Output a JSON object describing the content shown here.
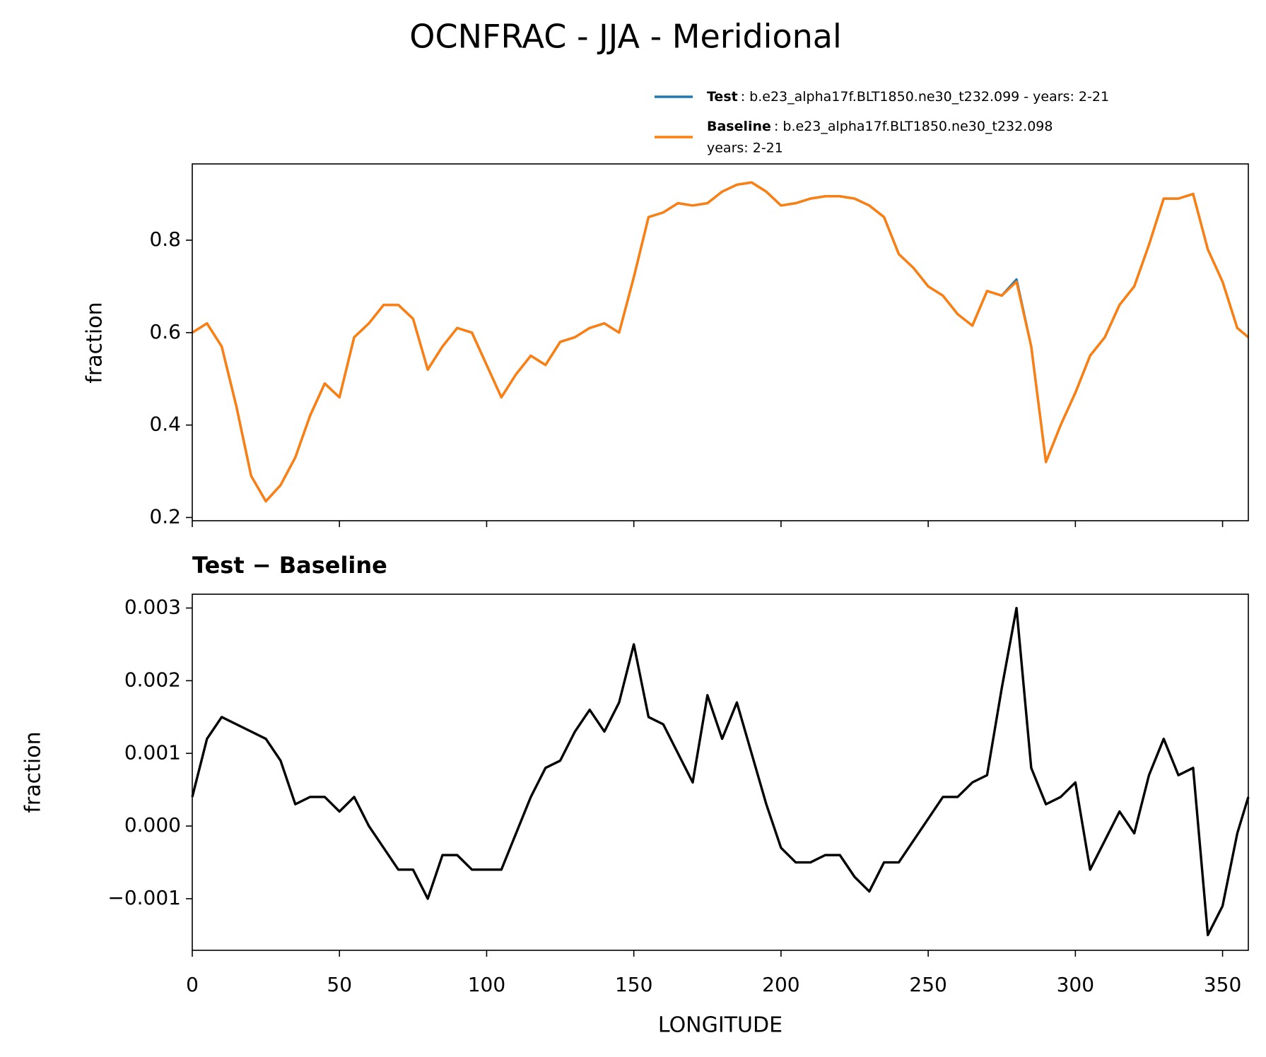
{
  "chart_data": [
    {
      "type": "line",
      "title": "OCNFRAC - JJA - Meridional",
      "ylabel": "fraction",
      "x": [
        0,
        5,
        10,
        15,
        20,
        25,
        30,
        35,
        40,
        45,
        50,
        55,
        60,
        65,
        70,
        75,
        80,
        85,
        90,
        95,
        100,
        105,
        110,
        115,
        120,
        125,
        130,
        135,
        140,
        145,
        150,
        155,
        160,
        165,
        170,
        175,
        180,
        185,
        190,
        195,
        200,
        205,
        210,
        215,
        220,
        225,
        230,
        235,
        240,
        245,
        250,
        255,
        260,
        265,
        270,
        275,
        280,
        285,
        290,
        295,
        300,
        305,
        310,
        315,
        320,
        325,
        330,
        335,
        340,
        345,
        350,
        355,
        358.75
      ],
      "series": [
        {
          "name": "Test",
          "description": [
            ": b.e23_alpha17f.BLT1850.ne30_t232.099 - years: 2-21"
          ],
          "color": "#1f77b4",
          "values": [
            0.6,
            0.62,
            0.57,
            0.44,
            0.29,
            0.235,
            0.27,
            0.33,
            0.42,
            0.49,
            0.46,
            0.59,
            0.62,
            0.66,
            0.66,
            0.63,
            0.52,
            0.57,
            0.61,
            0.6,
            0.53,
            0.46,
            0.51,
            0.55,
            0.53,
            0.58,
            0.59,
            0.61,
            0.62,
            0.6,
            0.72,
            0.85,
            0.86,
            0.88,
            0.875,
            0.88,
            0.905,
            0.92,
            0.925,
            0.905,
            0.875,
            0.88,
            0.89,
            0.895,
            0.895,
            0.89,
            0.875,
            0.85,
            0.77,
            0.74,
            0.7,
            0.68,
            0.64,
            0.615,
            0.69,
            0.68,
            0.715,
            0.57,
            0.32,
            0.4,
            0.47,
            0.55,
            0.59,
            0.66,
            0.7,
            0.79,
            0.89,
            0.89,
            0.9,
            0.78,
            0.71,
            0.61,
            0.59
          ]
        },
        {
          "name": "Baseline",
          "description": [
            ": b.e23_alpha17f.BLT1850.ne30_t232.098",
            "years: 2-21"
          ],
          "color": "#ff7f0e",
          "values": [
            0.6,
            0.62,
            0.57,
            0.44,
            0.29,
            0.235,
            0.27,
            0.33,
            0.42,
            0.49,
            0.46,
            0.59,
            0.62,
            0.66,
            0.66,
            0.63,
            0.52,
            0.57,
            0.61,
            0.6,
            0.53,
            0.46,
            0.51,
            0.55,
            0.53,
            0.58,
            0.59,
            0.61,
            0.62,
            0.6,
            0.72,
            0.85,
            0.86,
            0.88,
            0.875,
            0.88,
            0.905,
            0.92,
            0.925,
            0.905,
            0.875,
            0.88,
            0.89,
            0.895,
            0.895,
            0.89,
            0.875,
            0.85,
            0.77,
            0.74,
            0.7,
            0.68,
            0.64,
            0.615,
            0.69,
            0.68,
            0.71,
            0.57,
            0.32,
            0.4,
            0.47,
            0.55,
            0.59,
            0.66,
            0.7,
            0.79,
            0.89,
            0.89,
            0.9,
            0.78,
            0.71,
            0.61,
            0.59
          ]
        }
      ],
      "xlim": [
        0,
        358.75
      ],
      "ylim": [
        0.193,
        0.965
      ],
      "yticks": [
        0.2,
        0.4,
        0.6,
        0.8
      ]
    },
    {
      "type": "line",
      "title": "Test − Baseline",
      "xlabel": "LONGITUDE",
      "ylabel": "fraction",
      "color": "#000000",
      "x": [
        0,
        5,
        10,
        15,
        20,
        25,
        30,
        35,
        40,
        45,
        50,
        55,
        60,
        65,
        70,
        75,
        80,
        85,
        90,
        95,
        100,
        105,
        110,
        115,
        120,
        125,
        130,
        135,
        140,
        145,
        150,
        155,
        160,
        165,
        170,
        175,
        180,
        185,
        190,
        195,
        200,
        205,
        210,
        215,
        220,
        225,
        230,
        235,
        240,
        245,
        250,
        255,
        260,
        265,
        270,
        275,
        280,
        285,
        290,
        295,
        300,
        305,
        310,
        315,
        320,
        325,
        330,
        335,
        340,
        345,
        350,
        355,
        358.75
      ],
      "values": [
        0.0004,
        0.0012,
        0.0015,
        0.0014,
        0.0013,
        0.0012,
        0.0009,
        0.0003,
        0.0004,
        0.0004,
        0.0002,
        0.0004,
        0.0,
        -0.0003,
        -0.0006,
        -0.0006,
        -0.001,
        -0.0004,
        -0.0004,
        -0.0006,
        -0.0006,
        -0.0006,
        -0.0001,
        0.0004,
        0.0008,
        0.0009,
        0.0013,
        0.0016,
        0.0013,
        0.0017,
        0.0025,
        0.0015,
        0.0014,
        0.001,
        0.0006,
        0.0018,
        0.0012,
        0.0017,
        0.001,
        0.0003,
        -0.0003,
        -0.0005,
        -0.0005,
        -0.0004,
        -0.0004,
        -0.0007,
        -0.0009,
        -0.0005,
        -0.0005,
        -0.0002,
        0.0001,
        0.0004,
        0.0004,
        0.0006,
        0.0007,
        0.0019,
        0.003,
        0.0008,
        0.0003,
        0.0004,
        0.0006,
        -0.0006,
        -0.0002,
        0.0002,
        -0.0001,
        0.0007,
        0.0012,
        0.0007,
        0.0008,
        -0.0015,
        -0.0011,
        -0.0001,
        0.0004
      ],
      "xlim": [
        0,
        358.75
      ],
      "xticks": [
        0,
        50,
        100,
        150,
        200,
        250,
        300,
        350
      ],
      "ylim": [
        -0.00171,
        0.00319
      ],
      "yticks": [
        {
          "value": -0.001,
          "label": "−0.001"
        },
        {
          "value": 0,
          "label": "0.000"
        },
        0.001,
        0.002,
        0.003
      ]
    }
  ]
}
